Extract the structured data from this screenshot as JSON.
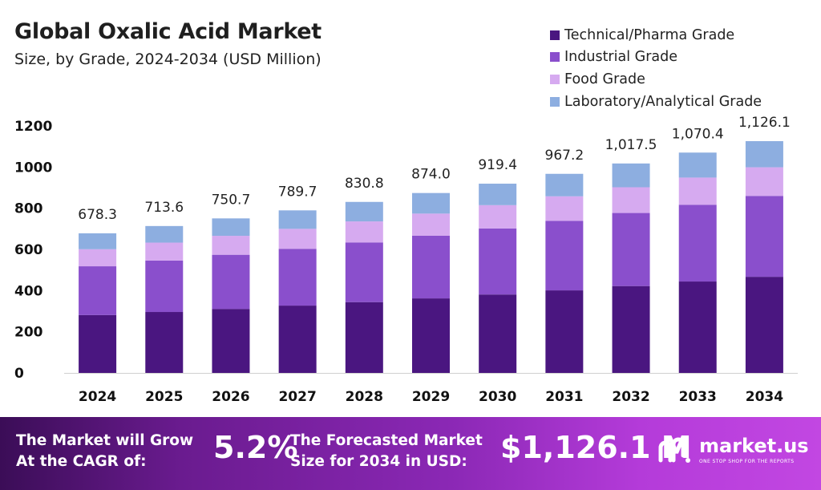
{
  "header": {
    "title": "Global Oxalic Acid Market",
    "subtitle": "Size, by Grade, 2024-2034 (USD Million)"
  },
  "colors": {
    "technical": "#4a1680",
    "industrial": "#8a4fcc",
    "food": "#d6aaf0",
    "laboratory": "#8daee0",
    "banner_start": "#3b0d57",
    "banner_end": "#c247e2"
  },
  "chart_data": {
    "type": "bar",
    "stacked": true,
    "categories": [
      "2024",
      "2025",
      "2026",
      "2027",
      "2028",
      "2029",
      "2030",
      "2031",
      "2032",
      "2033",
      "2034"
    ],
    "series": [
      {
        "name": "Technical/Pharma Grade",
        "values": [
          281,
          296,
          311,
          327,
          344,
          362,
          381,
          401,
          422,
          444,
          467
        ]
      },
      {
        "name": "Industrial Grade",
        "values": [
          237,
          250,
          263,
          276,
          290,
          305,
          321,
          338,
          355,
          373,
          393
        ]
      },
      {
        "name": "Food Grade",
        "values": [
          83,
          87,
          92,
          97,
          102,
          107,
          113,
          119,
          125,
          132,
          139
        ]
      },
      {
        "name": "Laboratory/Analytical Grade",
        "values": [
          77.3,
          80.6,
          84.7,
          89.7,
          94.8,
          100.0,
          104.4,
          109.2,
          115.5,
          121.4,
          127.1
        ]
      }
    ],
    "totals": [
      678.3,
      713.6,
      750.7,
      789.7,
      830.8,
      874.0,
      919.4,
      967.2,
      1017.5,
      1070.4,
      1126.1
    ],
    "total_labels": [
      "678.3",
      "713.6",
      "750.7",
      "789.7",
      "830.8",
      "874.0",
      "919.4",
      "967.2",
      "1,017.5",
      "1,070.4",
      "1,126.1"
    ],
    "ylim": [
      0,
      1200
    ],
    "yticks": [
      0,
      200,
      400,
      600,
      800,
      1000,
      1200
    ],
    "xlabel": "",
    "ylabel": "",
    "grid": false,
    "legend_position": "top-right"
  },
  "banner": {
    "cagr_label": "The Market will Grow At the CAGR of:",
    "cagr_value": "5.2%",
    "forecast_label": "The Forecasted Market Size for 2034 in USD:",
    "forecast_value": "$1,126.1 M",
    "logo_text": "market.us",
    "logo_tagline": "ONE STOP SHOP FOR THE REPORTS",
    "logo_icon": "market-us-logo-icon"
  }
}
